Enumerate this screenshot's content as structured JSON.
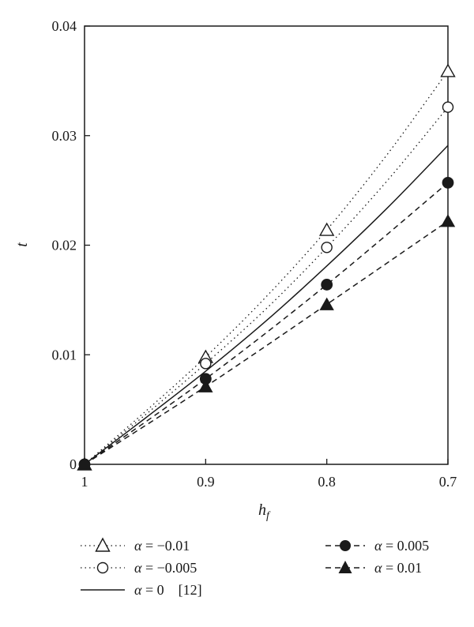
{
  "chart_data": {
    "type": "line",
    "xlabel": "h",
    "xlabel_sub": "f",
    "ylabel": "t",
    "x_reversed": true,
    "xlim": [
      1.0,
      0.7
    ],
    "ylim": [
      0,
      0.04
    ],
    "x_ticks": [
      1.0,
      0.9,
      0.8,
      0.7
    ],
    "x_tick_labels": [
      "1",
      "0.9",
      "0.8",
      "0.7"
    ],
    "y_ticks": [
      0,
      0.01,
      0.02,
      0.03,
      0.04
    ],
    "y_tick_labels": [
      "0",
      "0.01",
      "0.02",
      "0.03",
      "0.04"
    ],
    "grid": false,
    "legend_position": "bottom",
    "series": [
      {
        "name": "α = −0.01",
        "symbol": "α",
        "value_label": "= −0.01",
        "line_style": "dotted",
        "marker": "triangle-open",
        "markers": {
          "x": [
            1.0,
            0.9,
            0.8,
            0.7
          ],
          "y": [
            0.0,
            0.0098,
            0.0214,
            0.0359
          ]
        },
        "curve": {
          "x": [
            1.0,
            0.95,
            0.9,
            0.85,
            0.8,
            0.75,
            0.7
          ],
          "y": [
            0.0,
            0.0048,
            0.0098,
            0.0153,
            0.0214,
            0.0283,
            0.0359
          ]
        }
      },
      {
        "name": "α = −0.005",
        "symbol": "α",
        "value_label": "= −0.005",
        "line_style": "dotted",
        "marker": "circle-open",
        "markers": {
          "x": [
            1.0,
            0.9,
            0.8,
            0.7
          ],
          "y": [
            0.0,
            0.0092,
            0.0198,
            0.0326
          ]
        },
        "curve": {
          "x": [
            1.0,
            0.95,
            0.9,
            0.85,
            0.8,
            0.75,
            0.7
          ],
          "y": [
            0.0,
            0.0045,
            0.0092,
            0.0142,
            0.0198,
            0.0259,
            0.0326
          ]
        }
      },
      {
        "name": "α = 0",
        "symbol": "α",
        "value_label": "= 0",
        "reference": "[12]",
        "line_style": "solid",
        "marker": "none",
        "markers": {
          "x": [],
          "y": []
        },
        "curve": {
          "x": [
            1.0,
            0.95,
            0.9,
            0.85,
            0.8,
            0.75,
            0.7
          ],
          "y": [
            0.0,
            0.0042,
            0.0085,
            0.0131,
            0.0181,
            0.0234,
            0.0291
          ]
        }
      },
      {
        "name": "α = 0.005",
        "symbol": "α",
        "value_label": "= 0.005",
        "line_style": "dashed",
        "marker": "circle-filled",
        "markers": {
          "x": [
            1.0,
            0.9,
            0.8,
            0.7
          ],
          "y": [
            0.0,
            0.0078,
            0.0164,
            0.0257
          ]
        },
        "curve": {
          "x": [
            1.0,
            0.9,
            0.8,
            0.7
          ],
          "y": [
            0.0,
            0.0078,
            0.0164,
            0.0257
          ]
        }
      },
      {
        "name": "α = 0.01",
        "symbol": "α",
        "value_label": "= 0.01",
        "line_style": "dashed",
        "marker": "triangle-filled",
        "markers": {
          "x": [
            1.0,
            0.9,
            0.8,
            0.7
          ],
          "y": [
            0.0,
            0.0071,
            0.0146,
            0.0222
          ]
        },
        "curve": {
          "x": [
            1.0,
            0.9,
            0.8,
            0.7
          ],
          "y": [
            0.0,
            0.0071,
            0.0146,
            0.0222
          ]
        }
      }
    ]
  }
}
